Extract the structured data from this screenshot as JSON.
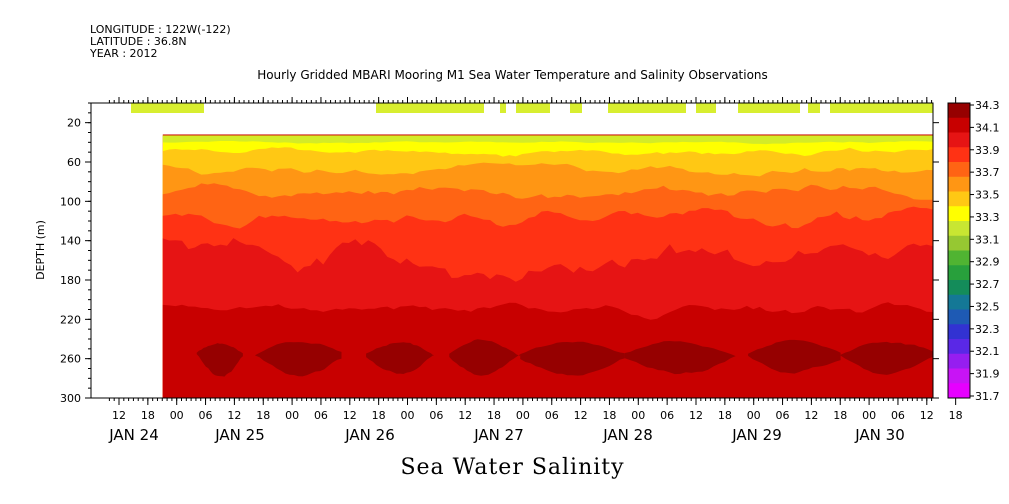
{
  "header": {
    "longitude": "LONGITUDE : 122W(-122)",
    "latitude": "LATITUDE : 36.8N",
    "year": "YEAR : 2012"
  },
  "chart_data": {
    "type": "heatmap",
    "title": "Hourly Gridded MBARI Mooring M1 Sea Water Temperature and Salinity Observations",
    "bottom_title": "Sea Water Salinity",
    "ylabel": "DEPTH (m)",
    "ylim": [
      300,
      0
    ],
    "y_inverted": true,
    "y_ticks": [
      20,
      60,
      100,
      140,
      180,
      220,
      260,
      300
    ],
    "x_hours_ticks": [
      "12",
      "18",
      "00",
      "06",
      "12",
      "18",
      "00",
      "06",
      "12",
      "18",
      "00",
      "06",
      "12",
      "18",
      "00",
      "06",
      "12",
      "18",
      "00",
      "06",
      "12",
      "18",
      "00",
      "06",
      "12",
      "18",
      "00",
      "06",
      "12",
      "18"
    ],
    "x_day_labels": [
      "JAN 24",
      "JAN 25",
      "JAN 26",
      "JAN 27",
      "JAN 28",
      "JAN 29",
      "JAN 30"
    ],
    "colorbar": {
      "levels": [
        "34.3",
        "34.1",
        "33.9",
        "33.7",
        "33.5",
        "33.3",
        "33.1",
        "32.9",
        "32.7",
        "32.5",
        "32.3",
        "32.1",
        "31.9",
        "31.7"
      ],
      "colors": [
        "#960000",
        "#c80000",
        "#e61414",
        "#ff3214",
        "#ff6414",
        "#ff9614",
        "#ffc814",
        "#ffff00",
        "#c8e632",
        "#96c832",
        "#50b432",
        "#28a03c",
        "#148c5a",
        "#147896",
        "#1e5ab4",
        "#3232d2",
        "#5a28e6",
        "#961ef0",
        "#c814f5",
        "#e600ff"
      ]
    },
    "data_start_day": "JAN 24 14:00",
    "data_end_day": "JAN 30 20:00",
    "depth_bands": [
      {
        "salinity_min": 33.1,
        "salinity_max": 33.3,
        "depth_top": 35,
        "depth_bottom": 45
      },
      {
        "salinity_min": 33.3,
        "salinity_max": 33.5,
        "depth_top": 38,
        "depth_bottom": 65
      },
      {
        "salinity_min": 33.5,
        "salinity_max": 33.7,
        "depth_top": 60,
        "depth_bottom": 100
      },
      {
        "salinity_min": 33.7,
        "salinity_max": 33.9,
        "depth_top": 90,
        "depth_bottom": 130
      },
      {
        "salinity_min": 33.9,
        "salinity_max": 34.1,
        "depth_top": 120,
        "depth_bottom": 210
      },
      {
        "salinity_min": 34.1,
        "salinity_max": 34.3,
        "depth_top": 200,
        "depth_bottom": 300
      },
      {
        "salinity_min": 34.3,
        "salinity_max": 34.5,
        "depth_top": 240,
        "depth_bottom": 280
      }
    ],
    "surface_segments_hours": [
      [
        14,
        50
      ],
      [
        242,
        284
      ],
      [
        296,
        298
      ],
      [
        308,
        320
      ],
      [
        342,
        348
      ],
      [
        392,
        428
      ],
      [
        440,
        452
      ],
      [
        470,
        496
      ],
      [
        522,
        528
      ],
      [
        536,
        588
      ]
    ]
  }
}
